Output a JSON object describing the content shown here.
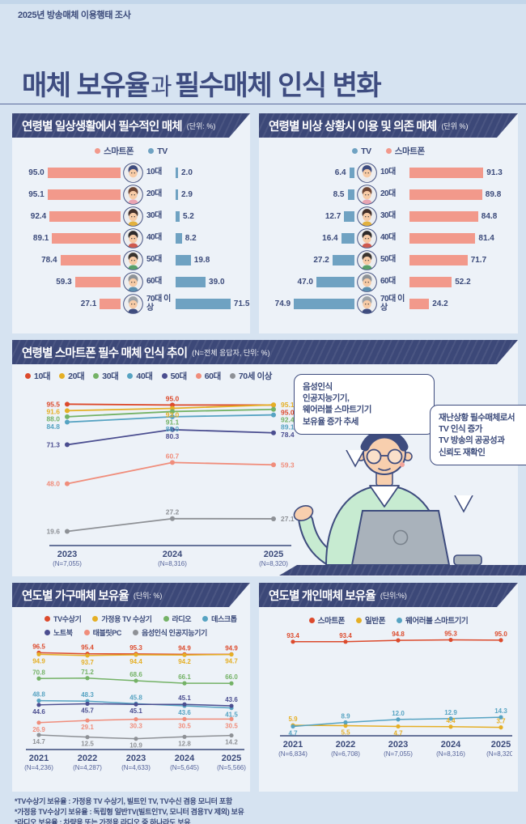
{
  "header": {
    "topbar": "2025년 방송매체 이용행태 조사",
    "title_bold1": "매체 보유율",
    "title_light": "과",
    "title_bold2": "필수매체 인식 변화"
  },
  "annotations": {
    "bubble_left": "음성인식\n인공지능기기,\n웨어러블 스마트기기\n보유율 증가 추세",
    "bubble_right": "재난상황 필수매체로서\nTV 인식 증가\nTV 방송의 공공성과\n신뢰도 재확인"
  },
  "footnotes": [
    "*TV수상기 보유율 : 가정용 TV 수상기, 빌트인 TV, TV수신 겸용 모니터 포함",
    "*가정용 TV수상기 보유율 : 독립형 일반TV(빌트인TV, 모니터 겸용TV 제외) 보유",
    "*라디오 보유율 : 차량용 또는 가정용 라디오 중 하나라도 보유"
  ],
  "chart_data": [
    {
      "id": "daily",
      "type": "bar",
      "title": "연령별 일상생활에서 필수적인 매체",
      "unit": "(단위: %)",
      "categories": [
        "10대",
        "20대",
        "30대",
        "40대",
        "50대",
        "60대",
        "70대 이상"
      ],
      "series": [
        {
          "name": "스마트폰",
          "color": "#F2998B",
          "values": [
            "95.0",
            "95.1",
            "92.4",
            "89.1",
            "78.4",
            "59.3",
            "27.1"
          ]
        },
        {
          "name": "TV",
          "color": "#6FA2C2",
          "values": [
            "2.0",
            "2.9",
            "5.2",
            "8.2",
            "19.8",
            "39.0",
            "71.5"
          ]
        }
      ]
    },
    {
      "id": "emergency",
      "type": "bar",
      "title": "연령별 비상 상황시 이용 및 의존 매체",
      "unit": "(단위 %)",
      "categories": [
        "10대",
        "20대",
        "30대",
        "40대",
        "50대",
        "60대",
        "70대 이상"
      ],
      "series": [
        {
          "name": "TV",
          "color": "#6FA2C2",
          "values": [
            "6.4",
            "8.5",
            "12.7",
            "16.4",
            "27.2",
            "47.0",
            "74.9"
          ]
        },
        {
          "name": "스마트폰",
          "color": "#F2998B",
          "values": [
            "91.3",
            "89.8",
            "84.8",
            "81.4",
            "71.7",
            "52.2",
            "24.2"
          ]
        }
      ]
    },
    {
      "id": "smartphone_trend",
      "type": "line",
      "title": "연령별 스마트폰 필수 매체 인식 추이",
      "unit": "(N=전체 응답자, 단위: %)",
      "x": [
        "2023",
        "2024",
        "2025"
      ],
      "x_sub": [
        "(N=7,055)",
        "(N=8,316)",
        "(N=8,320)"
      ],
      "ylim": [
        15,
        100
      ],
      "series": [
        {
          "name": "10대",
          "color": "#DC4A2C",
          "values": [
            "95.5",
            "95.0",
            "95.0"
          ]
        },
        {
          "name": "20대",
          "color": "#E5AF25",
          "values": [
            "91.6",
            "93.0",
            "95.1"
          ]
        },
        {
          "name": "30대",
          "color": "#74B266",
          "values": [
            "88.0",
            "91.1",
            "92.4"
          ]
        },
        {
          "name": "40대",
          "color": "#56A3C2",
          "values": [
            "84.8",
            "88.0",
            "89.1"
          ]
        },
        {
          "name": "50대",
          "color": "#4B4E90",
          "values": [
            "71.3",
            "80.3",
            "78.4"
          ]
        },
        {
          "name": "60대",
          "color": "#F08D7B",
          "values": [
            "48.0",
            "60.7",
            "59.3"
          ]
        },
        {
          "name": "70세 이상",
          "color": "#8E9196",
          "values": [
            "19.6",
            "27.2",
            "27.1"
          ]
        }
      ]
    },
    {
      "id": "household",
      "type": "line",
      "title": "연도별 가구매체 보유율",
      "unit": "(단위: %)",
      "x": [
        "2021",
        "2022",
        "2023",
        "2024",
        "2025"
      ],
      "x_sub": [
        "(N=4,236)",
        "(N=4,287)",
        "(N=4,633)",
        "(N=5,645)",
        "(N=5,566)"
      ],
      "ylim": [
        5,
        100
      ],
      "series": [
        {
          "name": "TV수상기",
          "color": "#DC4A2C",
          "values": [
            "96.5",
            "95.4",
            "95.3",
            "94.9",
            "94.9"
          ]
        },
        {
          "name": "가정용 TV 수상기",
          "color": "#E5AF25",
          "values": [
            "94.9",
            "93.7",
            "94.4",
            "94.2",
            "94.7"
          ]
        },
        {
          "name": "라디오",
          "color": "#74B266",
          "values": [
            "70.8",
            "71.2",
            "68.6",
            "66.1",
            "66.0"
          ]
        },
        {
          "name": "데스크톱",
          "color": "#56A3C2",
          "values": [
            "48.8",
            "48.3",
            "45.8",
            "43.6",
            "41.5"
          ]
        },
        {
          "name": "노트북",
          "color": "#4B4E90",
          "values": [
            "44.6",
            "45.7",
            "45.1",
            "45.1",
            "43.6"
          ]
        },
        {
          "name": "태블릿PC",
          "color": "#F08D7B",
          "values": [
            "26.9",
            "29.1",
            "30.3",
            "30.5",
            "30.5"
          ]
        },
        {
          "name": "음성인식 인공지능기기",
          "color": "#8E9196",
          "values": [
            "14.7",
            "12.5",
            "10.9",
            "12.8",
            "14.2"
          ]
        }
      ]
    },
    {
      "id": "personal",
      "type": "line",
      "title": "연도별 개인매체 보유율",
      "unit": "(단위:%)",
      "x": [
        "2021",
        "2022",
        "2023",
        "2024",
        "2025"
      ],
      "x_sub": [
        "(N=6,834)",
        "(N=6,708)",
        "(N=7,055)",
        "(N=8,316)",
        "(N=8,320)"
      ],
      "ylim": [
        0,
        100
      ],
      "series": [
        {
          "name": "스마트폰",
          "color": "#DC4A2C",
          "values": [
            "93.4",
            "93.4",
            "94.8",
            "95.3",
            "95.0"
          ]
        },
        {
          "name": "일반폰",
          "color": "#E5AF25",
          "values": [
            "5.9",
            "5.5",
            "4.7",
            "4.4",
            "3.7"
          ]
        },
        {
          "name": "웨어러블 스마트기기",
          "color": "#56A3C2",
          "values": [
            "4.7",
            "8.9",
            "12.0",
            "12.9",
            "14.3"
          ]
        }
      ]
    }
  ]
}
